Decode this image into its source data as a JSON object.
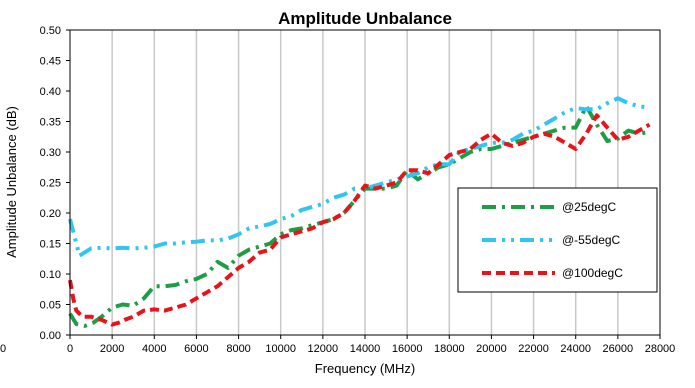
{
  "chart_data": {
    "type": "line",
    "title": "Amplitude Unbalance",
    "xlabel": "Frequency (MHz)",
    "ylabel": "Amplitude Unbalance (dB)",
    "xlim": [
      0,
      28000
    ],
    "ylim": [
      0,
      0.5
    ],
    "x_ticks": [
      "0",
      "2000",
      "4000",
      "6000",
      "8000",
      "10000",
      "12000",
      "14000",
      "16000",
      "18000",
      "20000",
      "22000",
      "24000",
      "26000",
      "28000"
    ],
    "x_tick_values": [
      0,
      2000,
      4000,
      6000,
      8000,
      10000,
      12000,
      14000,
      16000,
      18000,
      20000,
      22000,
      24000,
      26000,
      28000
    ],
    "y_ticks": [
      "0.00",
      "0.05",
      "0.10",
      "0.15",
      "0.20",
      "0.25",
      "0.30",
      "0.35",
      "0.40",
      "0.45",
      "0.50"
    ],
    "y_tick_values": [
      0,
      0.05,
      0.1,
      0.15,
      0.2,
      0.25,
      0.3,
      0.35,
      0.4,
      0.45,
      0.5
    ],
    "stray_left_label": "0",
    "grid": "vertical",
    "legend_position": "right",
    "series": [
      {
        "name": "@25degC",
        "color": "#1e9e44",
        "dash": "dash-dot",
        "x": [
          0,
          300,
          700,
          1100,
          1500,
          2000,
          2500,
          3000,
          3500,
          4000,
          4500,
          5000,
          5500,
          6000,
          6500,
          7000,
          7500,
          8000,
          8500,
          9000,
          9500,
          10000,
          10500,
          11000,
          11500,
          12000,
          12500,
          13000,
          13500,
          14000,
          14500,
          15000,
          15500,
          16000,
          16500,
          17000,
          17500,
          18000,
          18500,
          19000,
          19500,
          20000,
          20500,
          21000,
          21500,
          22000,
          22500,
          23000,
          23500,
          24000,
          24500,
          25000,
          25500,
          26000,
          26500,
          27000,
          27500
        ],
        "values": [
          0.035,
          0.018,
          0.015,
          0.02,
          0.03,
          0.045,
          0.05,
          0.048,
          0.06,
          0.08,
          0.08,
          0.082,
          0.088,
          0.092,
          0.1,
          0.12,
          0.11,
          0.13,
          0.14,
          0.145,
          0.15,
          0.165,
          0.172,
          0.175,
          0.18,
          0.185,
          0.19,
          0.2,
          0.22,
          0.24,
          0.24,
          0.24,
          0.245,
          0.27,
          0.255,
          0.265,
          0.275,
          0.28,
          0.29,
          0.3,
          0.305,
          0.305,
          0.31,
          0.315,
          0.32,
          0.325,
          0.33,
          0.335,
          0.34,
          0.34,
          0.375,
          0.345,
          0.318,
          0.322,
          0.335,
          0.33,
          0.333
        ]
      },
      {
        "name": "@-55degC",
        "color": "#33c5f0",
        "dash": "dash-dot-dot",
        "x": [
          0,
          150,
          300,
          450,
          1000,
          1500,
          2000,
          2500,
          3000,
          3500,
          4000,
          4500,
          5000,
          5500,
          6000,
          6500,
          7000,
          7500,
          8000,
          8500,
          9000,
          9500,
          10000,
          10500,
          11000,
          11500,
          12000,
          12500,
          13000,
          13500,
          14000,
          14500,
          15000,
          15500,
          16000,
          16500,
          17000,
          17500,
          18000,
          18500,
          19000,
          19500,
          20000,
          20500,
          21000,
          21500,
          22000,
          22500,
          23000,
          23500,
          24000,
          24500,
          25000,
          25500,
          26000,
          26500,
          27000,
          27500
        ],
        "values": [
          0.19,
          0.17,
          0.15,
          0.13,
          0.142,
          0.143,
          0.142,
          0.143,
          0.142,
          0.143,
          0.145,
          0.15,
          0.15,
          0.152,
          0.153,
          0.155,
          0.155,
          0.158,
          0.165,
          0.175,
          0.178,
          0.182,
          0.19,
          0.195,
          0.205,
          0.21,
          0.215,
          0.225,
          0.23,
          0.24,
          0.24,
          0.245,
          0.25,
          0.255,
          0.26,
          0.265,
          0.275,
          0.28,
          0.28,
          0.3,
          0.305,
          0.31,
          0.315,
          0.315,
          0.32,
          0.33,
          0.335,
          0.345,
          0.355,
          0.365,
          0.372,
          0.37,
          0.37,
          0.38,
          0.388,
          0.38,
          0.375,
          0.373
        ]
      },
      {
        "name": "@100degC",
        "color": "#e8141a",
        "dash": "dash",
        "x": [
          0,
          150,
          300,
          600,
          1000,
          1500,
          2000,
          2300,
          2600,
          3000,
          3500,
          4000,
          4500,
          5000,
          5500,
          6000,
          6500,
          7000,
          7500,
          8000,
          8500,
          9000,
          9500,
          10000,
          10500,
          11000,
          11500,
          12000,
          12500,
          13000,
          13500,
          14000,
          14500,
          15000,
          15500,
          16000,
          16500,
          17000,
          17500,
          18000,
          18500,
          19000,
          19500,
          20000,
          20500,
          21000,
          21500,
          22000,
          22500,
          23000,
          23500,
          24000,
          24500,
          25000,
          25500,
          26000,
          26500,
          27000,
          27500
        ],
        "values": [
          0.09,
          0.06,
          0.04,
          0.03,
          0.03,
          0.025,
          0.017,
          0.02,
          0.025,
          0.03,
          0.04,
          0.042,
          0.04,
          0.045,
          0.05,
          0.06,
          0.07,
          0.08,
          0.095,
          0.11,
          0.12,
          0.135,
          0.14,
          0.16,
          0.165,
          0.17,
          0.175,
          0.185,
          0.19,
          0.2,
          0.22,
          0.245,
          0.24,
          0.245,
          0.25,
          0.27,
          0.27,
          0.265,
          0.28,
          0.295,
          0.3,
          0.305,
          0.32,
          0.33,
          0.315,
          0.31,
          0.315,
          0.325,
          0.33,
          0.325,
          0.315,
          0.305,
          0.33,
          0.36,
          0.34,
          0.32,
          0.325,
          0.335,
          0.345
        ]
      }
    ]
  }
}
